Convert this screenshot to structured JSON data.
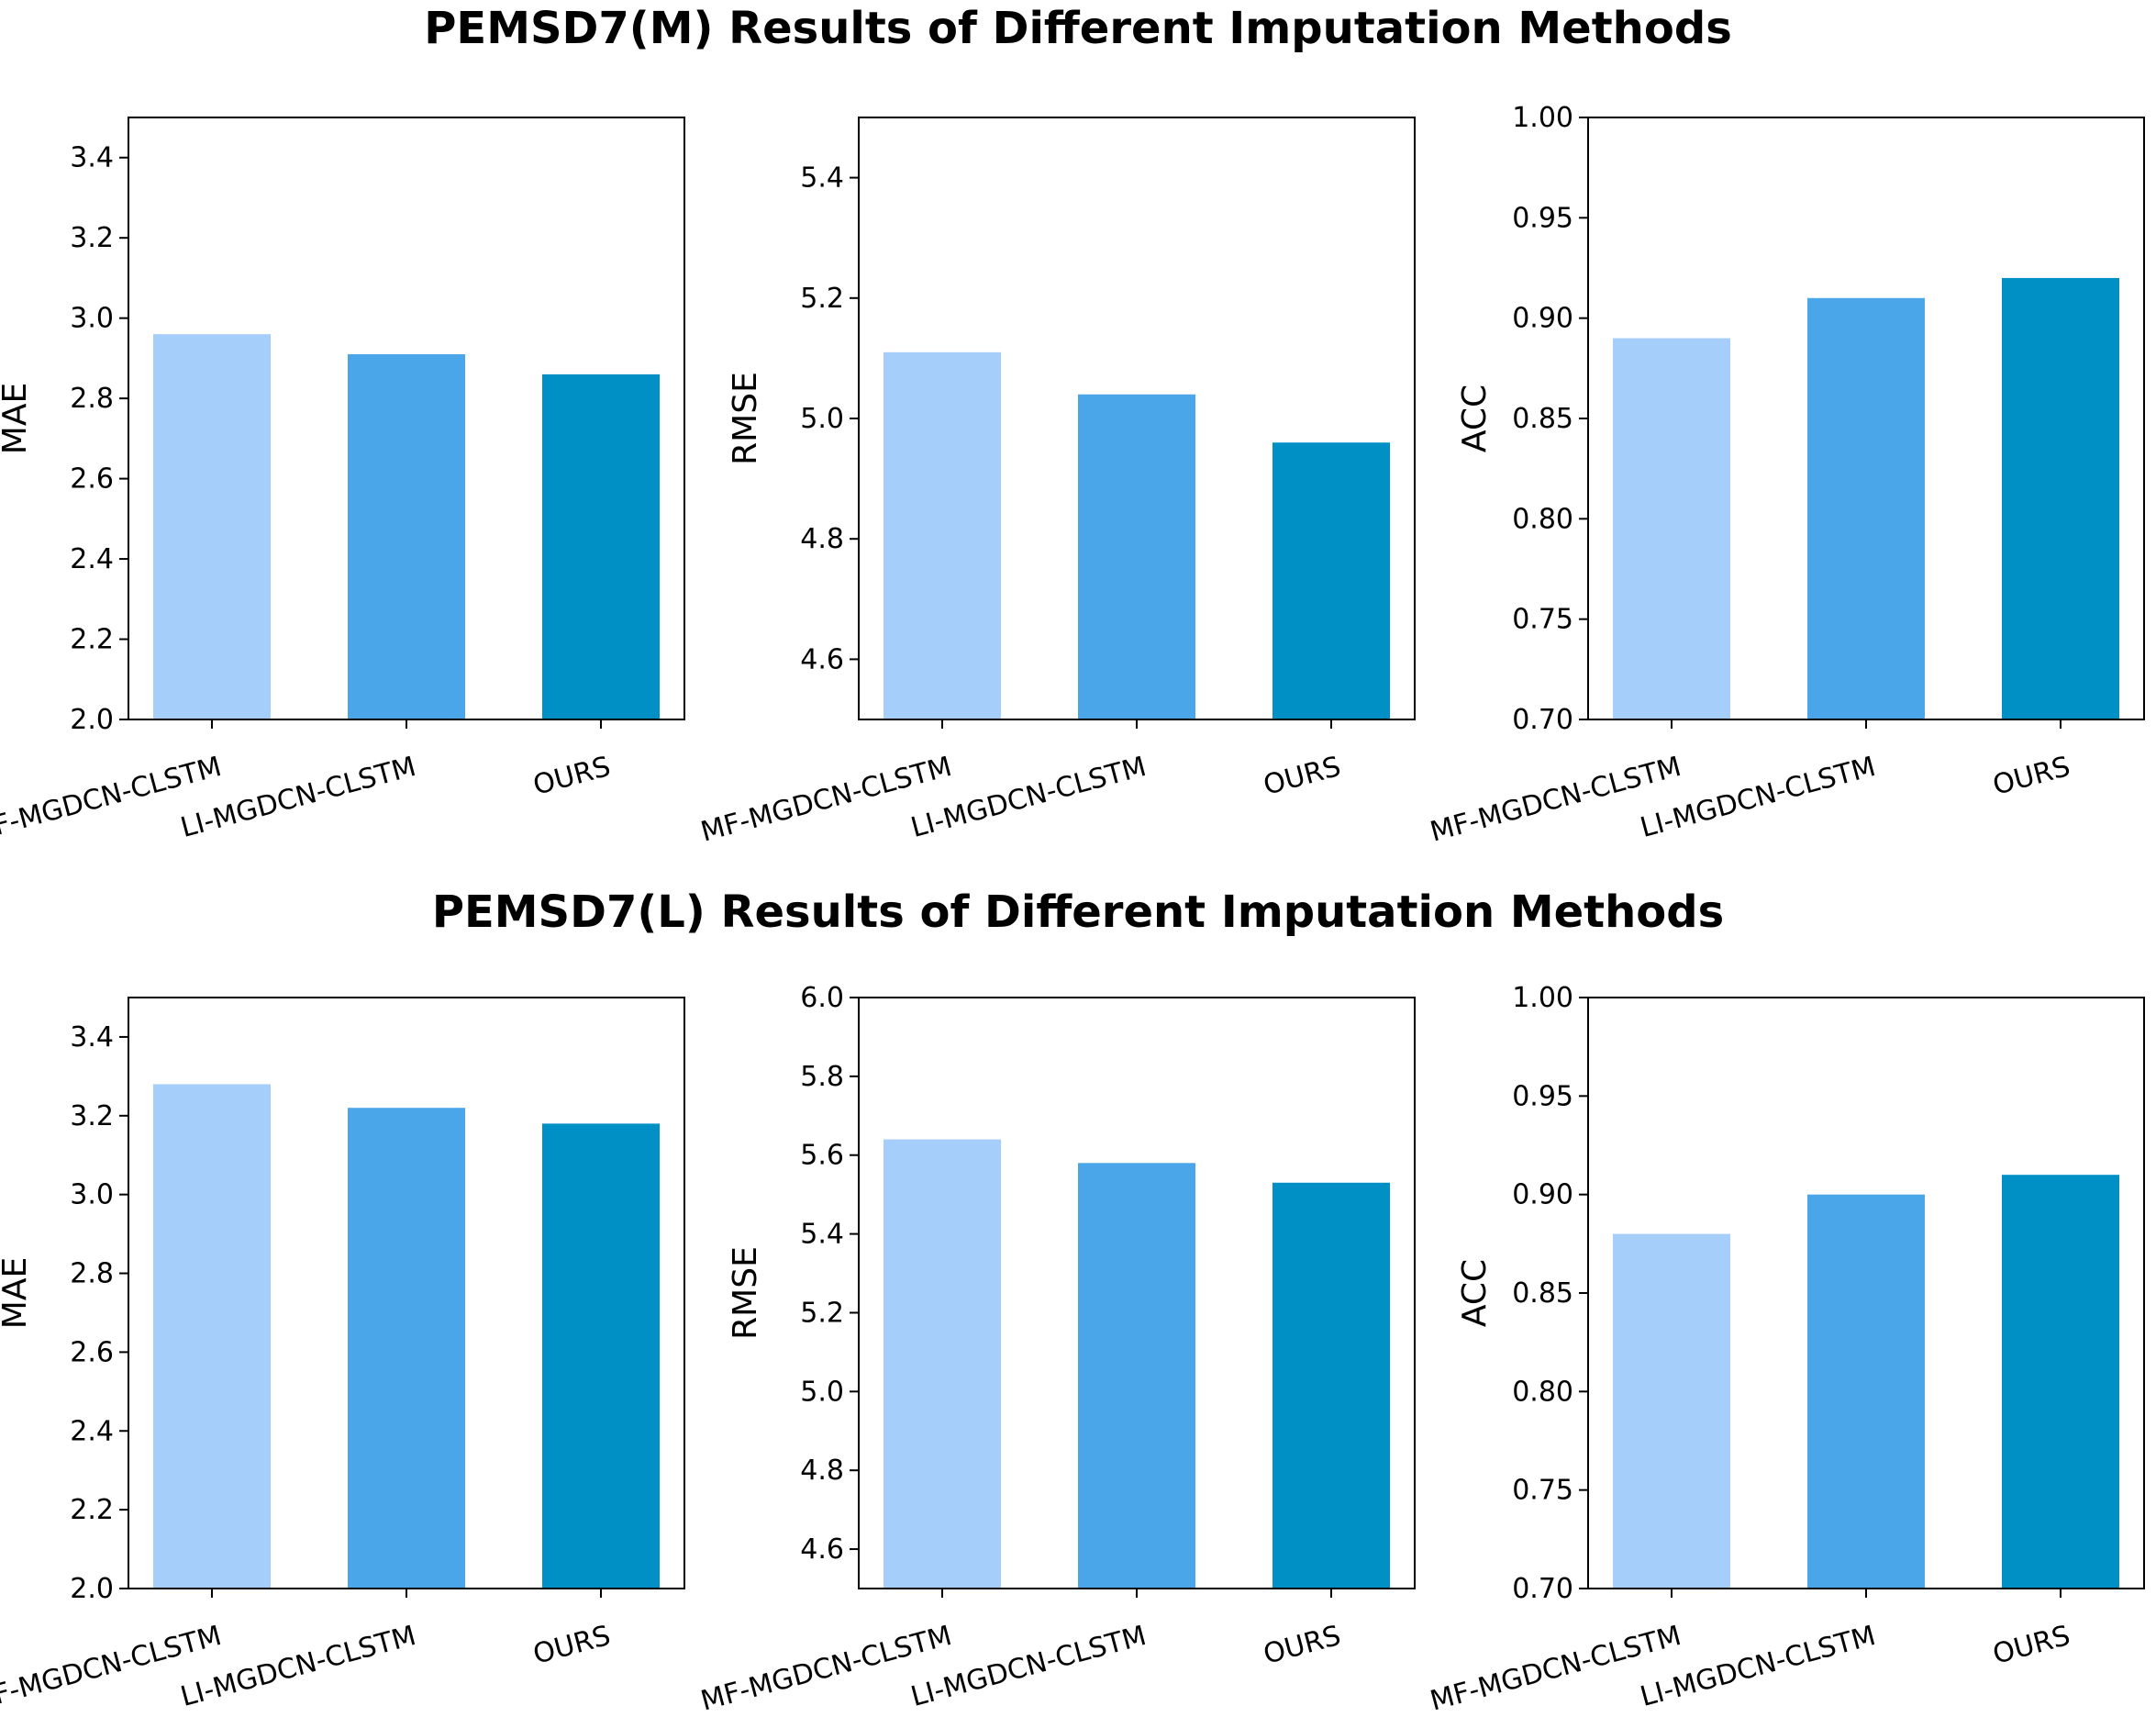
{
  "row_titles": [
    "PEMSD7(M) Results of Different Imputation Methods",
    "PEMSD7(L) Results of Different Imputation Methods"
  ],
  "colors": [
    "#a6cefa",
    "#4aa6e8",
    "#0090c6"
  ],
  "chart_data": [
    {
      "type": "bar",
      "title": "",
      "categories": [
        "MF-MGDCN-CLSTM",
        "LI-MGDCN-CLSTM",
        "OURS"
      ],
      "values": [
        2.96,
        2.91,
        2.86
      ],
      "xlabel": "",
      "ylabel": "MAE",
      "ylim": [
        2.0,
        3.5
      ],
      "yticks": [
        "2.0",
        "2.2",
        "2.4",
        "2.6",
        "2.8",
        "3.0",
        "3.2",
        "3.4"
      ],
      "ytick_values": [
        2.0,
        2.2,
        2.4,
        2.6,
        2.8,
        3.0,
        3.2,
        3.4
      ]
    },
    {
      "type": "bar",
      "title": "",
      "categories": [
        "MF-MGDCN-CLSTM",
        "LI-MGDCN-CLSTM",
        "OURS"
      ],
      "values": [
        5.11,
        5.04,
        4.96
      ],
      "xlabel": "",
      "ylabel": "RMSE",
      "ylim": [
        4.5,
        5.5
      ],
      "yticks": [
        "4.6",
        "4.8",
        "5.0",
        "5.2",
        "5.4"
      ],
      "ytick_values": [
        4.6,
        4.8,
        5.0,
        5.2,
        5.4
      ]
    },
    {
      "type": "bar",
      "title": "",
      "categories": [
        "MF-MGDCN-CLSTM",
        "LI-MGDCN-CLSTM",
        "OURS"
      ],
      "values": [
        0.89,
        0.91,
        0.92
      ],
      "xlabel": "",
      "ylabel": "ACC",
      "ylim": [
        0.7,
        1.0
      ],
      "yticks": [
        "0.70",
        "0.75",
        "0.80",
        "0.85",
        "0.90",
        "0.95",
        "1.00"
      ],
      "ytick_values": [
        0.7,
        0.75,
        0.8,
        0.85,
        0.9,
        0.95,
        1.0
      ]
    },
    {
      "type": "bar",
      "title": "",
      "categories": [
        "MF-MGDCN-CLSTM",
        "LI-MGDCN-CLSTM",
        "OURS"
      ],
      "values": [
        3.28,
        3.22,
        3.18
      ],
      "xlabel": "",
      "ylabel": "MAE",
      "ylim": [
        2.0,
        3.5
      ],
      "yticks": [
        "2.0",
        "2.2",
        "2.4",
        "2.6",
        "2.8",
        "3.0",
        "3.2",
        "3.4"
      ],
      "ytick_values": [
        2.0,
        2.2,
        2.4,
        2.6,
        2.8,
        3.0,
        3.2,
        3.4
      ]
    },
    {
      "type": "bar",
      "title": "",
      "categories": [
        "MF-MGDCN-CLSTM",
        "LI-MGDCN-CLSTM",
        "OURS"
      ],
      "values": [
        5.64,
        5.58,
        5.53
      ],
      "xlabel": "",
      "ylabel": "RMSE",
      "ylim": [
        4.5,
        6.0
      ],
      "yticks": [
        "4.6",
        "4.8",
        "5.0",
        "5.2",
        "5.4",
        "5.6",
        "5.8",
        "6.0"
      ],
      "ytick_values": [
        4.6,
        4.8,
        5.0,
        5.2,
        5.4,
        5.6,
        5.8,
        6.0
      ]
    },
    {
      "type": "bar",
      "title": "",
      "categories": [
        "MF-MGDCN-CLSTM",
        "LI-MGDCN-CLSTM",
        "OURS"
      ],
      "values": [
        0.88,
        0.9,
        0.91
      ],
      "xlabel": "",
      "ylabel": "ACC",
      "ylim": [
        0.7,
        1.0
      ],
      "yticks": [
        "0.70",
        "0.75",
        "0.80",
        "0.85",
        "0.90",
        "0.95",
        "1.00"
      ],
      "ytick_values": [
        0.7,
        0.75,
        0.8,
        0.85,
        0.9,
        0.95,
        1.0
      ]
    }
  ]
}
